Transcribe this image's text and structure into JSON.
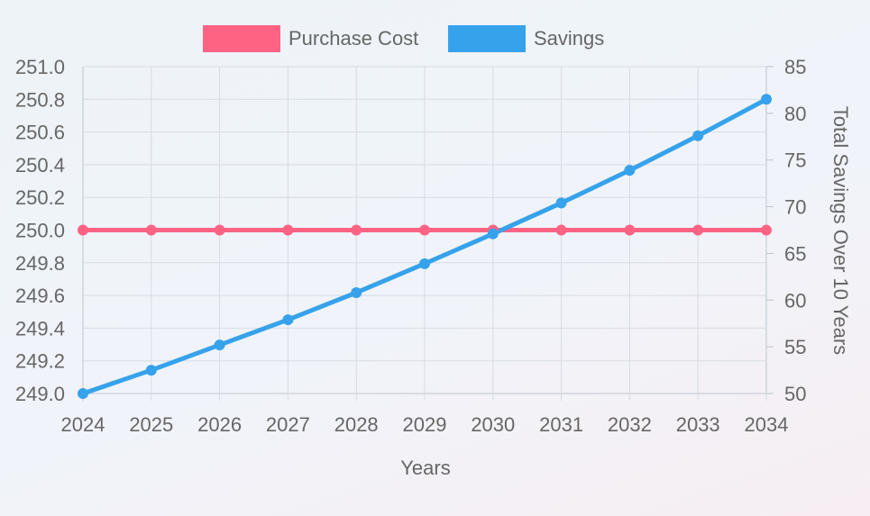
{
  "chart_data": {
    "type": "line",
    "xlabel": "Years",
    "ylabel_right": "Total Savings Over 10 Years",
    "categories": [
      "2024",
      "2025",
      "2026",
      "2027",
      "2028",
      "2029",
      "2030",
      "2031",
      "2032",
      "2033",
      "2034"
    ],
    "y_left": {
      "min": 249.0,
      "max": 251.0,
      "step": 0.2,
      "ticks": [
        "251.0",
        "250.8",
        "250.6",
        "250.4",
        "250.2",
        "250.0",
        "249.8",
        "249.6",
        "249.4",
        "249.2",
        "249.0"
      ]
    },
    "y_right": {
      "min": 50,
      "max": 85,
      "step": 5,
      "ticks": [
        "85",
        "80",
        "75",
        "70",
        "65",
        "60",
        "55",
        "50"
      ]
    },
    "grid": true,
    "legend_position": "top-center",
    "series": [
      {
        "name": "Purchase Cost",
        "axis": "left",
        "color": "#ff6384",
        "values": [
          250,
          250,
          250,
          250,
          250,
          250,
          250,
          250,
          250,
          250,
          250
        ]
      },
      {
        "name": "Savings",
        "axis": "right",
        "color": "#36a2eb",
        "values": [
          50,
          52.5,
          55.2,
          57.9,
          60.8,
          63.9,
          67.1,
          70.4,
          73.9,
          77.6,
          81.5
        ]
      }
    ]
  }
}
